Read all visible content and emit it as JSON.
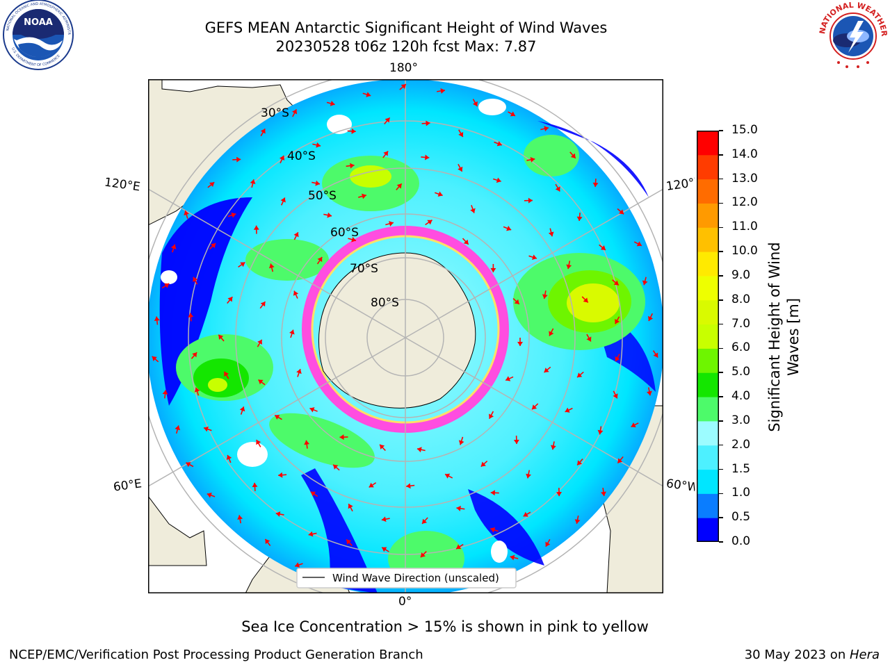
{
  "title": {
    "line1": "GEFS MEAN Antarctic Significant Height of Wind Waves",
    "line2": "20230528 t06z 120h fcst   Max: 7.87"
  },
  "logos": {
    "left": {
      "icon": "noaa-logo",
      "text": "NOAA"
    },
    "right": {
      "icon": "national-weather-service-logo",
      "text": "NATIONAL WEATHER SERVICE"
    }
  },
  "map": {
    "projection": "south-polar-stereographic",
    "longitude_labels": {
      "top": "180°",
      "bottom": "0°",
      "upper_left": "120°E",
      "upper_right": "120°W",
      "lower_left": "60°E",
      "lower_right": "60°W"
    },
    "latitude_labels": [
      "30°S",
      "40°S",
      "50°S",
      "60°S",
      "70°S",
      "80°S"
    ],
    "legend_label": "Wind Wave Direction (unscaled)",
    "colors": {
      "land": "#efecdb",
      "arrow": "#ff0000",
      "grid": "#b4b4b4",
      "sea_ice": "#ff4de0"
    }
  },
  "colorbar": {
    "label_line1": "Significant Height of Wind",
    "label_line2": "Waves [m]",
    "ticks": [
      "0.0",
      "0.5",
      "1.0",
      "1.5",
      "2.0",
      "3.0",
      "4.0",
      "5.0",
      "6.0",
      "7.0",
      "8.0",
      "9.0",
      "10.0",
      "11.0",
      "12.0",
      "13.0",
      "14.0",
      "15.0"
    ],
    "colors": [
      "#0000ff",
      "#0a7dff",
      "#00e6ff",
      "#4df0ff",
      "#9cfcff",
      "#4dfa6a",
      "#14e600",
      "#6ef500",
      "#c8ff00",
      "#d9fa00",
      "#eeff00",
      "#ffea00",
      "#ffc000",
      "#ff9a00",
      "#ff6c00",
      "#ff3c00",
      "#ff0000"
    ]
  },
  "note": "Sea Ice Concentration > 15% is shown in pink to yellow",
  "footer": {
    "left": "NCEP/EMC/Verification Post Processing Product Generation Branch",
    "right_date": "30 May 2023 on ",
    "right_machine": "Hera"
  }
}
